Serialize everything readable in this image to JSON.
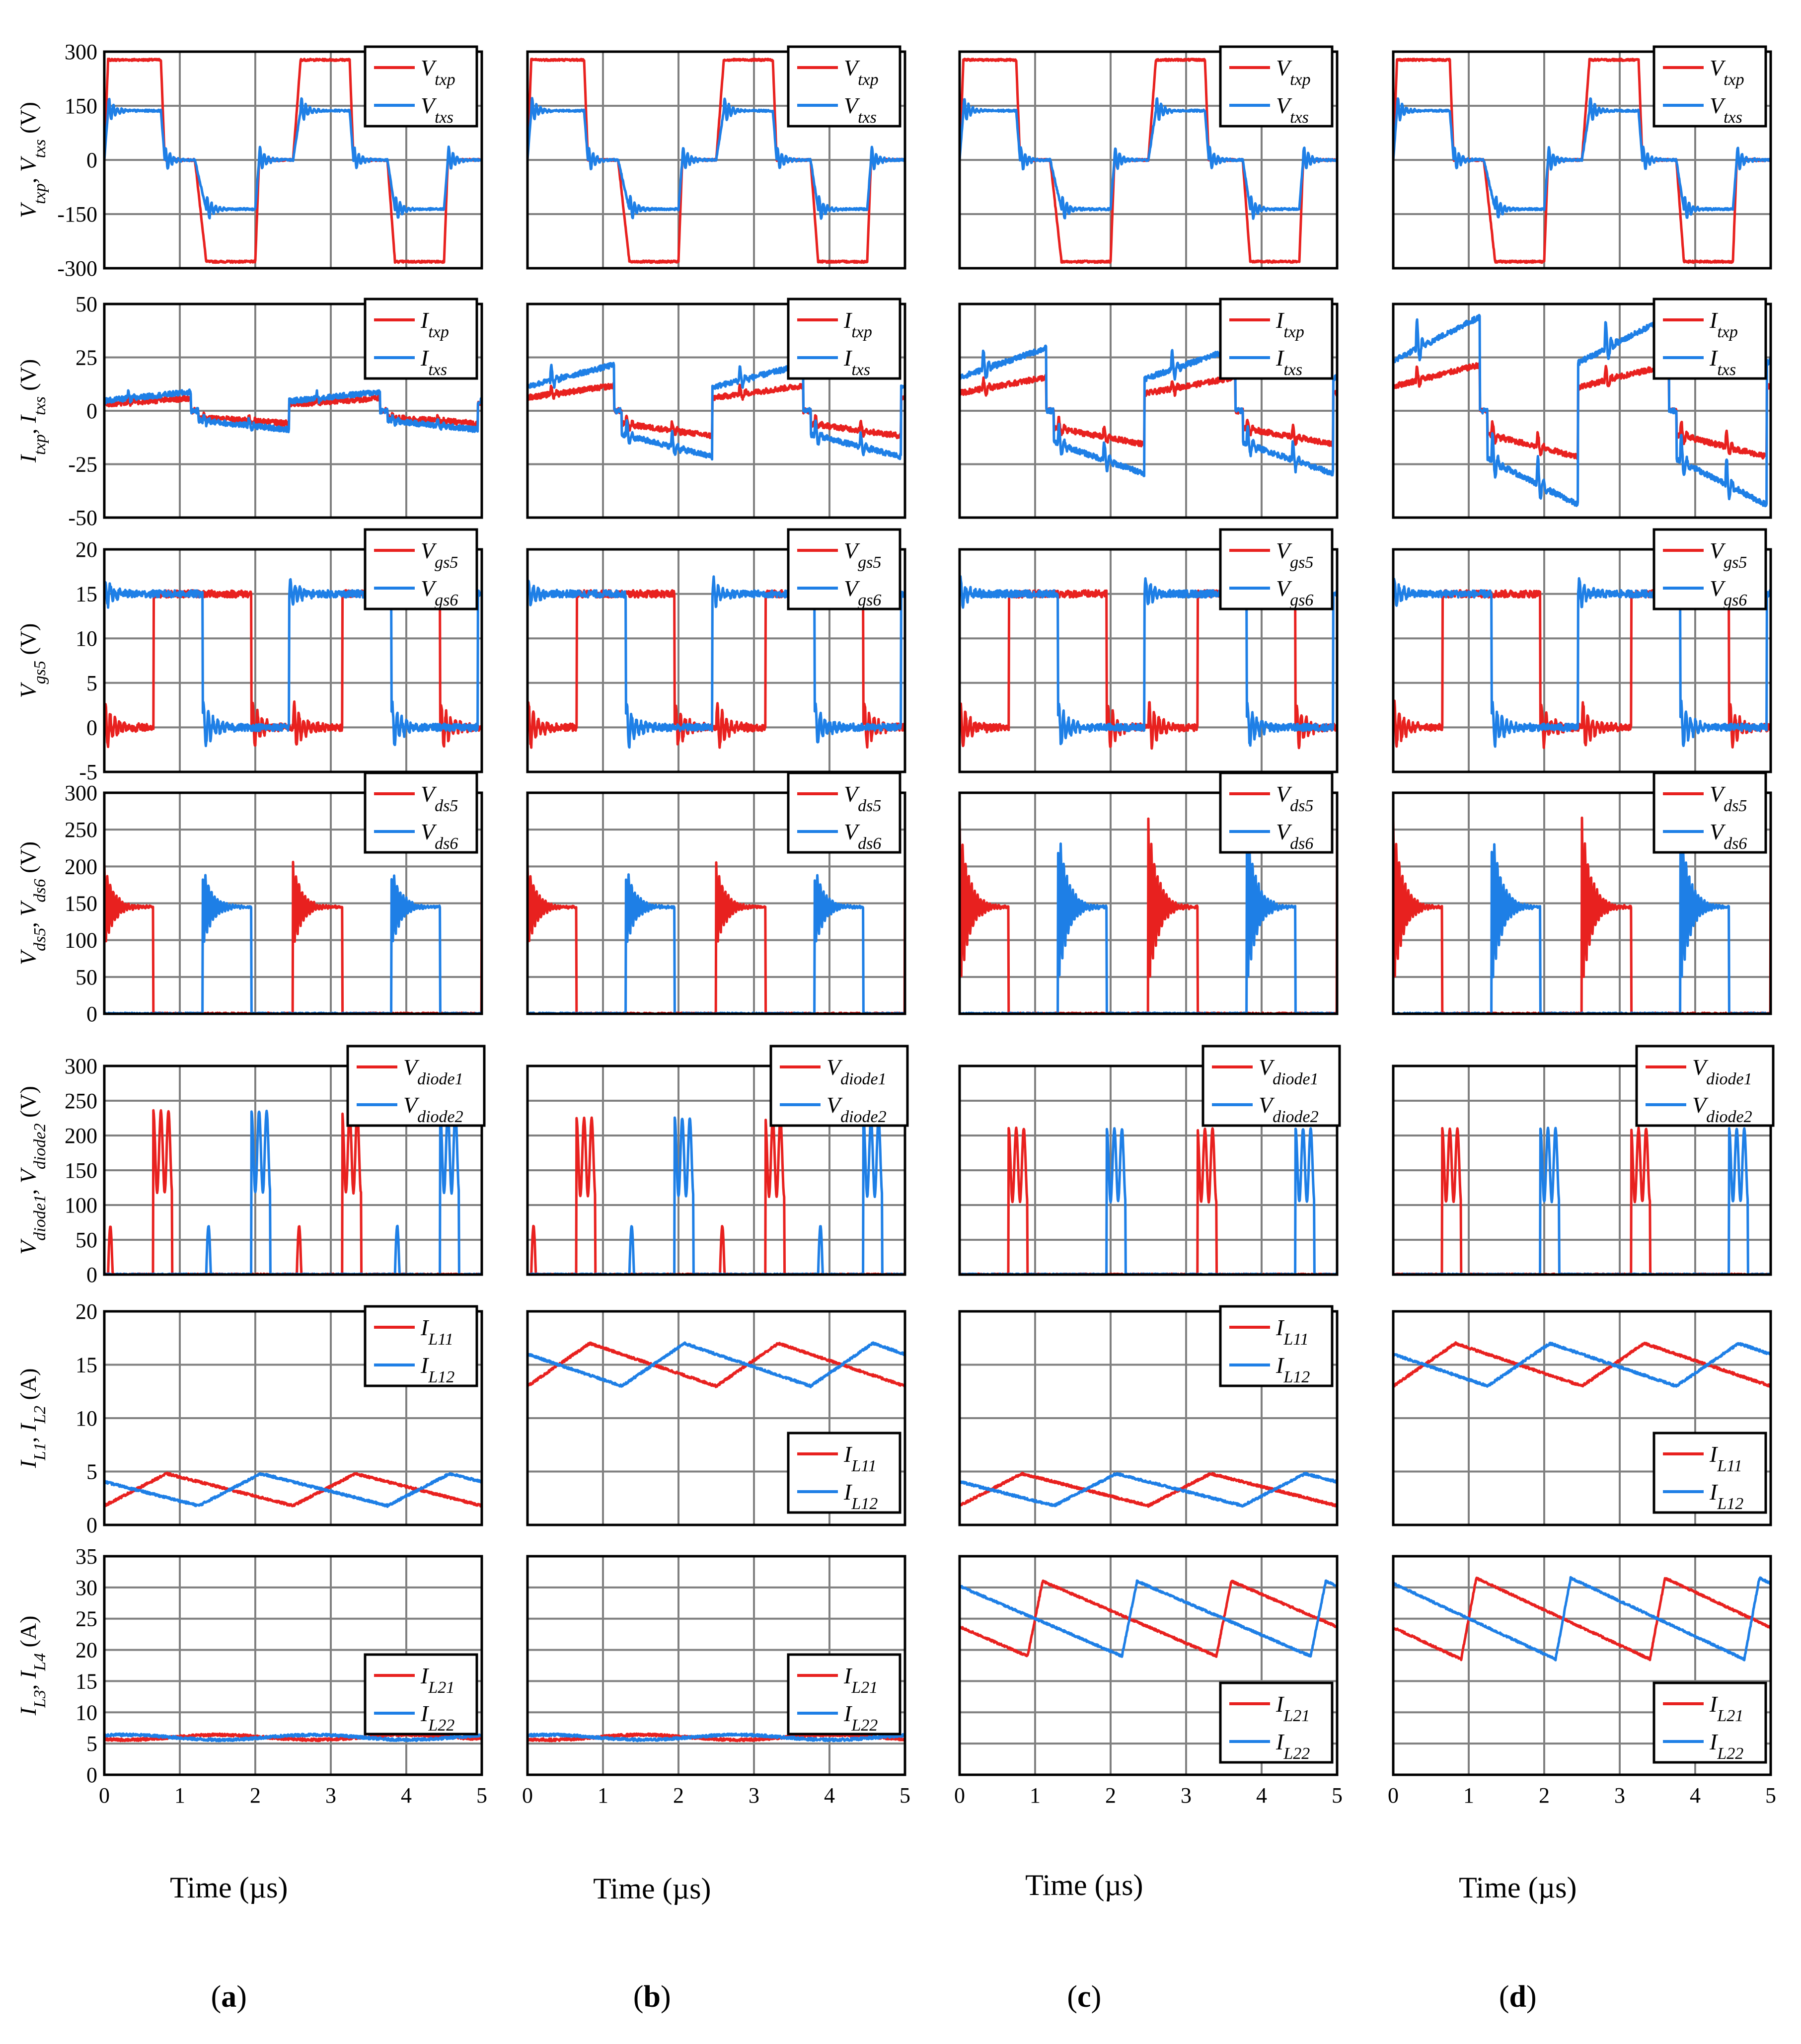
{
  "colors": {
    "red": "#e8211f",
    "blue": "#1e7fe6",
    "grid": "#808080",
    "frame": "#000000"
  },
  "x_title": "Time (µs)",
  "columns": [
    {
      "label": "a"
    },
    {
      "label": "b"
    },
    {
      "label": "c"
    },
    {
      "label": "d"
    }
  ],
  "chart_data": [
    {
      "type": "line",
      "row": 0,
      "ylabel": "Vtxp, Vtxs (V)",
      "yticks": [
        "300",
        "150",
        "0",
        "-150",
        "-300"
      ],
      "ylim": [
        -330,
        330
      ],
      "xlim": [
        0,
        5
      ],
      "legend": [
        {
          "name": "Vtxp",
          "color": "red"
        },
        {
          "name": "Vtxs",
          "color": "blue"
        }
      ],
      "series_red_points": [
        [
          0,
          0
        ],
        [
          0.05,
          305
        ],
        [
          0.75,
          305
        ],
        [
          0.8,
          0
        ],
        [
          1.2,
          0
        ],
        [
          1.35,
          -310
        ],
        [
          2.0,
          -310
        ],
        [
          2.05,
          0
        ],
        [
          2.5,
          0
        ],
        [
          2.6,
          305
        ],
        [
          3.25,
          305
        ],
        [
          3.3,
          0
        ],
        [
          3.75,
          0
        ],
        [
          3.85,
          -310
        ],
        [
          4.5,
          -310
        ],
        [
          4.55,
          0
        ],
        [
          5,
          0
        ]
      ],
      "series_blue_points": [
        [
          0,
          0
        ],
        [
          0.05,
          150
        ],
        [
          0.75,
          150
        ],
        [
          0.8,
          0
        ],
        [
          1.2,
          0
        ],
        [
          1.35,
          -150
        ],
        [
          2.0,
          -150
        ],
        [
          2.05,
          0
        ],
        [
          2.5,
          0
        ],
        [
          2.6,
          150
        ],
        [
          3.25,
          150
        ],
        [
          3.3,
          0
        ],
        [
          3.75,
          0
        ],
        [
          3.85,
          -150
        ],
        [
          4.5,
          -150
        ],
        [
          4.55,
          0
        ],
        [
          5,
          0
        ]
      ]
    },
    {
      "type": "line",
      "row": 1,
      "ylabel": "Itxp, Itxs (V)",
      "yticks": [
        "50",
        "25",
        "0",
        "-25",
        "-50"
      ],
      "ylim": [
        -50,
        50
      ],
      "xlim": [
        0,
        5
      ],
      "legend": [
        {
          "name": "Itxp",
          "color": "red"
        },
        {
          "name": "Itxs",
          "color": "blue"
        }
      ],
      "peak_amplitude_red_by_column": [
        6,
        12,
        16,
        22
      ],
      "peak_amplitude_blue_by_column": [
        9,
        22,
        30,
        45
      ]
    },
    {
      "type": "line",
      "row": 2,
      "ylabel": "Vgs5 (V)",
      "yticks": [
        "20",
        "15",
        "10",
        "5",
        "0",
        "-5"
      ],
      "ylim": [
        -5,
        20
      ],
      "xlim": [
        0,
        5
      ],
      "legend": [
        {
          "name": "Vgs5",
          "color": "red"
        },
        {
          "name": "Vgs6",
          "color": "blue"
        }
      ],
      "on_level": 15,
      "off_level": 0
    },
    {
      "type": "line",
      "row": 3,
      "ylabel": "Vds5, Vds6 (V)",
      "yticks": [
        "300",
        "250",
        "200",
        "150",
        "100",
        "50",
        "0"
      ],
      "ylim": [
        0,
        300
      ],
      "xlim": [
        0,
        5
      ],
      "legend": [
        {
          "name": "Vds5",
          "color": "red"
        },
        {
          "name": "Vds6",
          "color": "blue"
        }
      ],
      "plateau": 145,
      "peak_by_column": [
        205,
        205,
        265,
        265
      ]
    },
    {
      "type": "line",
      "row": 4,
      "ylabel": "Vdiode1, Vdiode2 (V)",
      "yticks": [
        "300",
        "250",
        "200",
        "150",
        "100",
        "50",
        "0"
      ],
      "ylim": [
        0,
        300
      ],
      "xlim": [
        0,
        5
      ],
      "legend": [
        {
          "name": "Vdiode1",
          "color": "red"
        },
        {
          "name": "Vdiode2",
          "color": "blue"
        }
      ],
      "peak_by_column": [
        235,
        225,
        210,
        210
      ]
    },
    {
      "type": "line",
      "row": 5,
      "ylabel": "IL1, IL2 (A)",
      "yticks": [
        "20",
        "15",
        "10",
        "5",
        "0"
      ],
      "ylim": [
        0,
        20
      ],
      "xlim": [
        0,
        5
      ],
      "legend": [
        {
          "name": "IL11",
          "color": "red"
        },
        {
          "name": "IL12",
          "color": "blue"
        }
      ],
      "mean_by_column": [
        3.3,
        15,
        3.3,
        15
      ],
      "ripple_by_column": [
        3,
        4,
        3,
        4
      ],
      "legend_position_by_column": [
        "top-right",
        "bottom-right",
        "top-right",
        "bottom-right"
      ]
    },
    {
      "type": "line",
      "row": 6,
      "ylabel": "IL3, IL4 (A)",
      "yticks": [
        "35",
        "30",
        "25",
        "20",
        "15",
        "10",
        "5",
        "0"
      ],
      "ylim": [
        0,
        35
      ],
      "xlim": [
        0,
        5
      ],
      "xticks": [
        "0",
        "1",
        "2",
        "3",
        "4",
        "5"
      ],
      "legend": [
        {
          "name": "IL21",
          "color": "red"
        },
        {
          "name": "IL22",
          "color": "blue"
        }
      ],
      "mean_by_column": [
        6,
        6,
        25,
        25
      ],
      "ripple_by_column": [
        0.8,
        0.8,
        12,
        13
      ],
      "legend_position_by_column": [
        "middle-right",
        "middle-right",
        "bottom-right",
        "bottom-right"
      ]
    }
  ]
}
